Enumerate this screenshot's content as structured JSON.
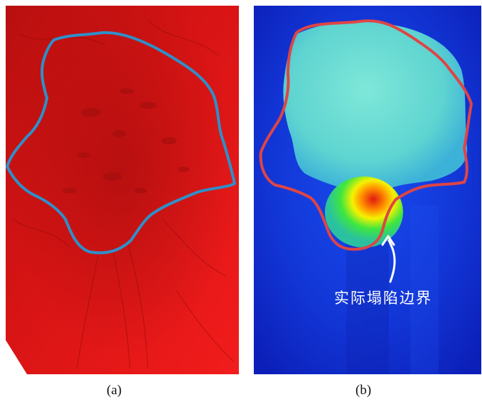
{
  "colors": {
    "terrain_red": "#e21818",
    "outline_blue": "#2f8fc9",
    "outline_red": "#de4545",
    "heat_background": "#1238d8",
    "heat_cyan": "#6fe6cf",
    "annotation_text": "#ffffff"
  },
  "panels": {
    "a": {
      "caption": "(a)"
    },
    "b": {
      "caption": "(b)",
      "annotation": "实际塌陷边界"
    }
  },
  "icons": {
    "arrow": "curved-arrow-icon"
  }
}
